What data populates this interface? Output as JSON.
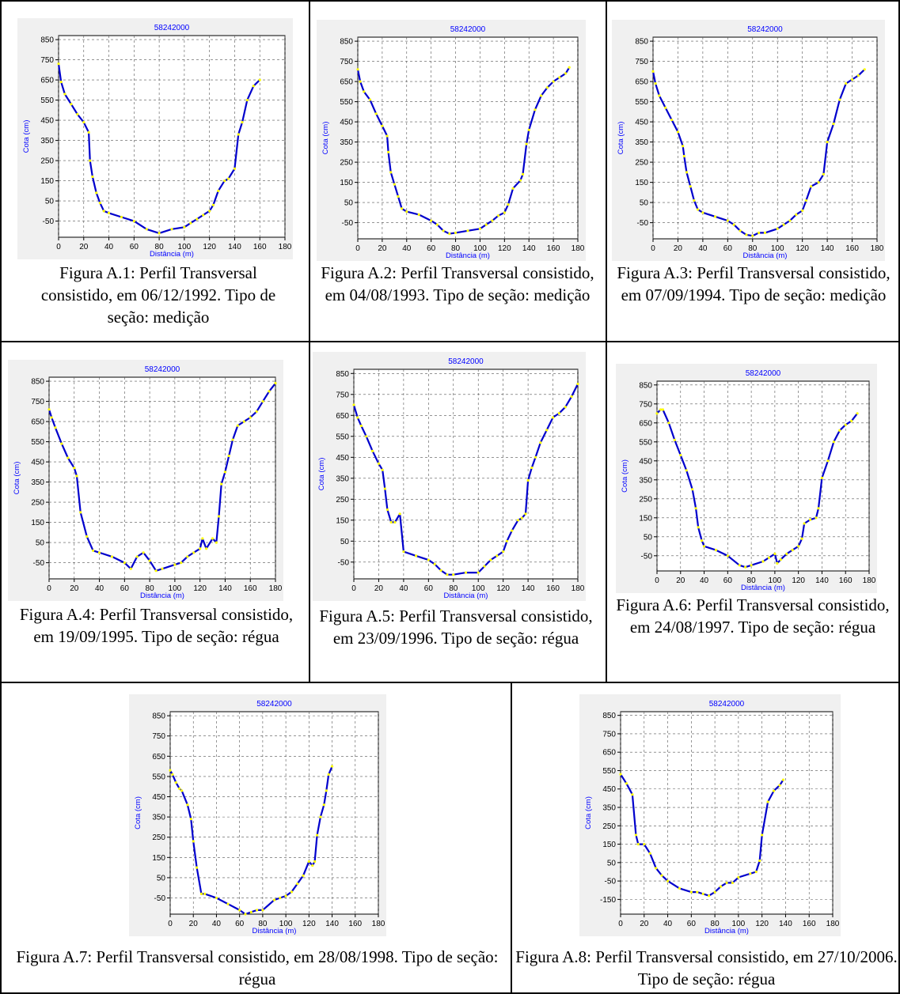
{
  "colors": {
    "panel_bg": "#f0f0f0",
    "axis_text": "#0000ff",
    "line": "#0000cc",
    "marker": "#ffff00"
  },
  "charts": [
    {
      "caption": "Figura A.1: Perfil Transversal consistido, em 06/12/1992. Tipo de seção: medição"
    },
    {
      "caption": "Figura A.2: Perfil Transversal consistido, em 04/08/1993. Tipo de seção: medição"
    },
    {
      "caption": "Figura A.3: Perfil Transversal consistido, em 07/09/1994. Tipo de seção: medição"
    },
    {
      "caption": "Figura A.4: Perfil Transversal consistido, em 19/09/1995. Tipo de seção: régua"
    },
    {
      "caption": "Figura A.5: Perfil Transversal consistido, em 23/09/1996. Tipo de seção: régua"
    },
    {
      "caption": "Figura A.6: Perfil Transversal consistido, em 24/08/1997. Tipo de seção: régua"
    },
    {
      "caption": "Figura A.7: Perfil Transversal consistido, em 28/08/1998. Tipo de seção: régua"
    },
    {
      "caption": "Figura A.8: Perfil Transversal consistido, em 27/10/2006. Tipo de seção: régua"
    }
  ],
  "chart_data": [
    {
      "type": "line",
      "title": "58242000",
      "xlabel": "Distância (m)",
      "ylabel": "Cota (cm)",
      "xlim": [
        0,
        180
      ],
      "ylim": [
        -130,
        870
      ],
      "xticks": [
        0,
        20,
        40,
        60,
        80,
        100,
        120,
        140,
        160,
        180
      ],
      "yticks": [
        -50,
        50,
        150,
        250,
        350,
        450,
        550,
        650,
        750,
        850
      ],
      "x": [
        0,
        2,
        5,
        10,
        15,
        20,
        24,
        25,
        27,
        30,
        33,
        36,
        40,
        50,
        60,
        70,
        80,
        90,
        100,
        105,
        110,
        115,
        120,
        123,
        127,
        132,
        135,
        140,
        143,
        146,
        150,
        155,
        160
      ],
      "y": [
        730,
        640,
        580,
        530,
        480,
        440,
        390,
        250,
        170,
        90,
        40,
        0,
        -10,
        -30,
        -50,
        -90,
        -110,
        -90,
        -80,
        -60,
        -40,
        -20,
        0,
        30,
        100,
        150,
        160,
        210,
        380,
        440,
        550,
        620,
        650
      ]
    },
    {
      "type": "line",
      "title": "58242000",
      "xlabel": "Distância (m)",
      "ylabel": "Cota (cm)",
      "xlim": [
        0,
        180
      ],
      "ylim": [
        -130,
        870
      ],
      "xticks": [
        0,
        20,
        40,
        60,
        80,
        100,
        120,
        140,
        160,
        180
      ],
      "yticks": [
        -50,
        50,
        150,
        250,
        350,
        450,
        550,
        650,
        750,
        850
      ],
      "x": [
        0,
        2,
        5,
        10,
        15,
        20,
        24,
        25,
        27,
        30,
        33,
        36,
        40,
        50,
        60,
        65,
        70,
        75,
        80,
        90,
        100,
        105,
        110,
        115,
        120,
        123,
        127,
        133,
        135,
        138,
        140,
        145,
        150,
        155,
        160,
        165,
        170,
        173
      ],
      "y": [
        710,
        650,
        600,
        560,
        490,
        430,
        380,
        300,
        200,
        140,
        80,
        20,
        5,
        -10,
        -40,
        -60,
        -90,
        -105,
        -100,
        -90,
        -80,
        -60,
        -40,
        -15,
        0,
        40,
        120,
        160,
        190,
        340,
        410,
        510,
        580,
        620,
        650,
        670,
        690,
        720
      ]
    },
    {
      "type": "line",
      "title": "58242000",
      "xlabel": "Distância (m)",
      "ylabel": "Cota (cm)",
      "xlim": [
        0,
        180
      ],
      "ylim": [
        -130,
        870
      ],
      "xticks": [
        0,
        20,
        40,
        60,
        80,
        100,
        120,
        140,
        160,
        180
      ],
      "yticks": [
        -50,
        50,
        150,
        250,
        350,
        450,
        550,
        650,
        750,
        850
      ],
      "x": [
        0,
        2,
        5,
        10,
        15,
        20,
        24,
        25,
        27,
        30,
        33,
        36,
        40,
        50,
        60,
        65,
        70,
        75,
        80,
        85,
        90,
        100,
        105,
        110,
        115,
        120,
        123,
        127,
        133,
        137,
        140,
        145,
        150,
        155,
        160,
        165,
        170
      ],
      "y": [
        700,
        640,
        580,
        520,
        460,
        400,
        330,
        280,
        200,
        130,
        60,
        15,
        0,
        -20,
        -40,
        -60,
        -90,
        -110,
        -115,
        -100,
        -100,
        -80,
        -60,
        -40,
        -10,
        10,
        60,
        130,
        150,
        190,
        350,
        440,
        560,
        640,
        660,
        680,
        710
      ]
    },
    {
      "type": "line",
      "title": "58242000",
      "xlabel": "Distância (m)",
      "ylabel": "Cota (cm)",
      "xlim": [
        0,
        180
      ],
      "ylim": [
        -130,
        870
      ],
      "xticks": [
        0,
        20,
        40,
        60,
        80,
        100,
        120,
        140,
        160,
        180
      ],
      "yticks": [
        -50,
        50,
        150,
        250,
        350,
        450,
        550,
        650,
        750,
        850
      ],
      "x": [
        0,
        2,
        5,
        10,
        15,
        20,
        22,
        25,
        30,
        35,
        40,
        50,
        60,
        65,
        70,
        75,
        80,
        85,
        90,
        100,
        105,
        110,
        115,
        120,
        122,
        125,
        130,
        133,
        135,
        137,
        140,
        143,
        146,
        150,
        155,
        160,
        165,
        170,
        175,
        180
      ],
      "y": [
        710,
        670,
        620,
        540,
        470,
        420,
        380,
        200,
        80,
        10,
        0,
        -20,
        -50,
        -80,
        -20,
        0,
        -40,
        -90,
        -80,
        -60,
        -50,
        -20,
        0,
        20,
        70,
        20,
        70,
        50,
        180,
        340,
        400,
        480,
        560,
        630,
        650,
        670,
        700,
        750,
        800,
        840
      ]
    },
    {
      "type": "line",
      "title": "58242000",
      "xlabel": "Distância (m)",
      "ylabel": "Cota (cm)",
      "xlim": [
        0,
        180
      ],
      "ylim": [
        -130,
        870
      ],
      "xticks": [
        0,
        20,
        40,
        60,
        80,
        100,
        120,
        140,
        160,
        180
      ],
      "yticks": [
        -50,
        50,
        150,
        250,
        350,
        450,
        550,
        650,
        750,
        850
      ],
      "x": [
        0,
        3,
        6,
        10,
        15,
        20,
        23,
        25,
        27,
        30,
        33,
        37,
        40,
        50,
        60,
        65,
        70,
        75,
        80,
        90,
        100,
        105,
        110,
        115,
        120,
        123,
        127,
        132,
        135,
        138,
        140,
        143,
        146,
        150,
        155,
        160,
        165,
        170,
        175,
        180
      ],
      "y": [
        700,
        640,
        600,
        550,
        480,
        420,
        390,
        300,
        200,
        140,
        140,
        180,
        0,
        -20,
        -40,
        -60,
        -90,
        -110,
        -110,
        -100,
        -100,
        -70,
        -40,
        -20,
        0,
        50,
        100,
        150,
        160,
        180,
        340,
        400,
        450,
        520,
        580,
        640,
        660,
        690,
        740,
        800
      ]
    },
    {
      "type": "line",
      "title": "58242000",
      "xlabel": "Distância (m)",
      "ylabel": "Cota (cm)",
      "xlim": [
        0,
        180
      ],
      "ylim": [
        -130,
        870
      ],
      "xticks": [
        0,
        20,
        40,
        60,
        80,
        100,
        120,
        140,
        160,
        180
      ],
      "yticks": [
        -50,
        50,
        150,
        250,
        350,
        450,
        550,
        650,
        750,
        850
      ],
      "x": [
        0,
        3,
        5,
        10,
        15,
        20,
        25,
        30,
        33,
        35,
        38,
        40,
        50,
        60,
        70,
        75,
        80,
        90,
        95,
        100,
        102,
        105,
        110,
        115,
        120,
        123,
        125,
        130,
        135,
        137,
        140,
        145,
        150,
        155,
        160,
        165,
        170
      ],
      "y": [
        700,
        720,
        720,
        650,
        560,
        480,
        400,
        300,
        200,
        100,
        30,
        0,
        -20,
        -50,
        -100,
        -110,
        -100,
        -80,
        -60,
        -40,
        -90,
        -70,
        -40,
        -20,
        0,
        40,
        120,
        140,
        150,
        200,
        360,
        450,
        550,
        610,
        640,
        660,
        700
      ]
    },
    {
      "type": "line",
      "title": "58242000",
      "xlabel": "Distância (m)",
      "ylabel": "Cota (cm)",
      "xlim": [
        0,
        180
      ],
      "ylim": [
        -130,
        870
      ],
      "xticks": [
        0,
        20,
        40,
        60,
        80,
        100,
        120,
        140,
        160,
        180
      ],
      "yticks": [
        -50,
        50,
        150,
        250,
        350,
        450,
        550,
        650,
        750,
        850
      ],
      "x": [
        0,
        2,
        5,
        8,
        10,
        15,
        18,
        20,
        23,
        27,
        30,
        40,
        50,
        60,
        65,
        70,
        75,
        80,
        90,
        95,
        100,
        105,
        110,
        115,
        120,
        123,
        125,
        127,
        130,
        133,
        135,
        137,
        140
      ],
      "y": [
        580,
        560,
        520,
        490,
        480,
        410,
        340,
        230,
        100,
        -30,
        -30,
        -50,
        -80,
        -110,
        -130,
        -120,
        -110,
        -110,
        -60,
        -50,
        -40,
        -20,
        20,
        60,
        130,
        110,
        130,
        260,
        350,
        410,
        480,
        560,
        600
      ]
    },
    {
      "type": "line",
      "title": "58242000",
      "xlabel": "Distância (m)",
      "ylabel": "Cota (cm)",
      "xlim": [
        0,
        180
      ],
      "ylim": [
        -230,
        870
      ],
      "xticks": [
        0,
        20,
        40,
        60,
        80,
        100,
        120,
        140,
        160,
        180
      ],
      "yticks": [
        -150,
        -50,
        50,
        150,
        250,
        350,
        450,
        550,
        650,
        750,
        850
      ],
      "x": [
        0,
        5,
        10,
        13,
        15,
        20,
        25,
        30,
        35,
        40,
        50,
        60,
        65,
        70,
        75,
        80,
        85,
        90,
        95,
        100,
        110,
        115,
        118,
        120,
        125,
        130,
        135,
        138
      ],
      "y": [
        530,
        480,
        420,
        200,
        150,
        150,
        100,
        20,
        -20,
        -50,
        -90,
        -110,
        -110,
        -120,
        -130,
        -110,
        -80,
        -60,
        -60,
        -30,
        -10,
        0,
        60,
        200,
        380,
        440,
        470,
        500
      ]
    }
  ]
}
